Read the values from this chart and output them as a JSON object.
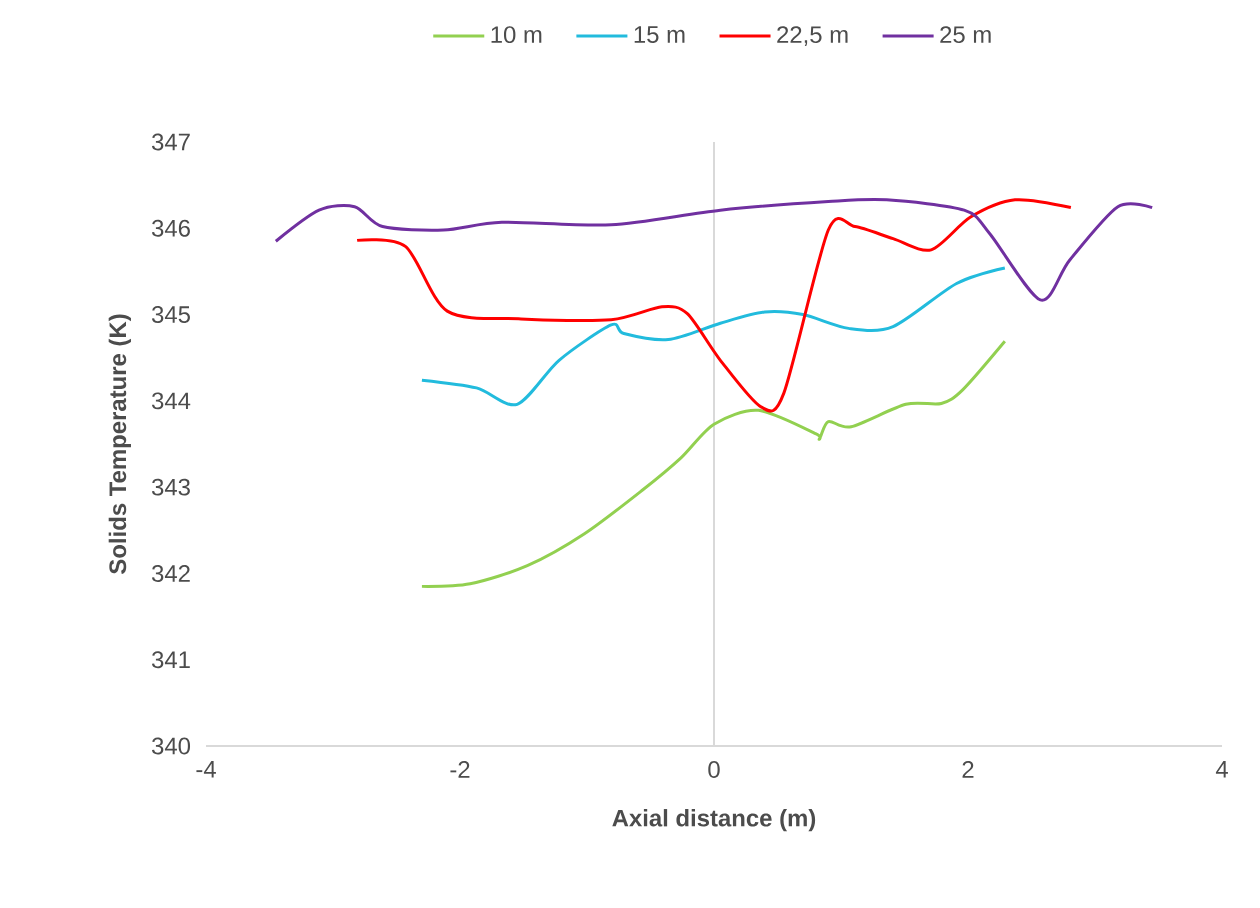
{
  "chart_data": {
    "type": "line",
    "xlabel": "Axial distance (m)",
    "ylabel": "Solids Temperature (K)",
    "xlim": [
      -4,
      4
    ],
    "xticks": [
      -4,
      -2,
      0,
      2,
      4
    ],
    "ylim": [
      340,
      347
    ],
    "yticks": [
      340,
      341,
      342,
      343,
      344,
      345,
      346,
      347
    ],
    "grid": false,
    "ref_lines": [
      {
        "axis": "x",
        "value": 0,
        "color": "#d9d9d9"
      }
    ],
    "legend": "top",
    "marker": "none",
    "line_style": "solid",
    "series": [
      {
        "name": "10 m",
        "color": "#92d050",
        "x": [
          -2.3,
          -1.92,
          -1.47,
          -1.02,
          -0.56,
          -0.26,
          0,
          0.35,
          0.8,
          0.83,
          0.9,
          1.08,
          1.51,
          1.79,
          1.96,
          2.29
        ],
        "values": [
          341.85,
          341.88,
          342.09,
          342.46,
          342.97,
          343.34,
          343.73,
          343.89,
          343.62,
          343.56,
          343.76,
          343.7,
          343.96,
          343.97,
          344.13,
          344.69
        ]
      },
      {
        "name": "15 m",
        "color": "#22bbdd",
        "x": [
          -2.3,
          -1.87,
          -1.55,
          -1.22,
          -0.81,
          -0.71,
          -0.36,
          0.05,
          0.4,
          0.7,
          1.06,
          1.41,
          1.91,
          2.29
        ],
        "values": [
          344.24,
          344.15,
          343.96,
          344.47,
          344.88,
          344.78,
          344.71,
          344.9,
          345.03,
          345.0,
          344.84,
          344.86,
          345.36,
          345.54
        ]
      },
      {
        "name": "22,5 m",
        "color": "#ff0000",
        "x": [
          -2.81,
          -2.43,
          -2.1,
          -1.52,
          -0.81,
          -0.41,
          -0.21,
          0.05,
          0.37,
          0.55,
          0.9,
          1.11,
          1.41,
          1.71,
          2.02,
          2.37,
          2.81
        ],
        "values": [
          345.86,
          345.79,
          345.04,
          344.95,
          344.94,
          345.09,
          345.01,
          344.47,
          343.93,
          344.09,
          345.98,
          346.02,
          345.88,
          345.75,
          346.13,
          346.33,
          346.24
        ]
      },
      {
        "name": "25 m",
        "color": "#7030a0",
        "x": [
          -3.45,
          -3.11,
          -2.83,
          -2.61,
          -2.13,
          -1.67,
          -0.81,
          0.05,
          0.9,
          1.36,
          1.97,
          2.17,
          2.57,
          2.8,
          3.18,
          3.45
        ],
        "values": [
          345.85,
          346.21,
          346.25,
          346.02,
          345.98,
          346.07,
          346.04,
          346.21,
          346.31,
          346.33,
          346.21,
          345.94,
          345.17,
          345.63,
          346.25,
          346.24
        ]
      }
    ]
  }
}
